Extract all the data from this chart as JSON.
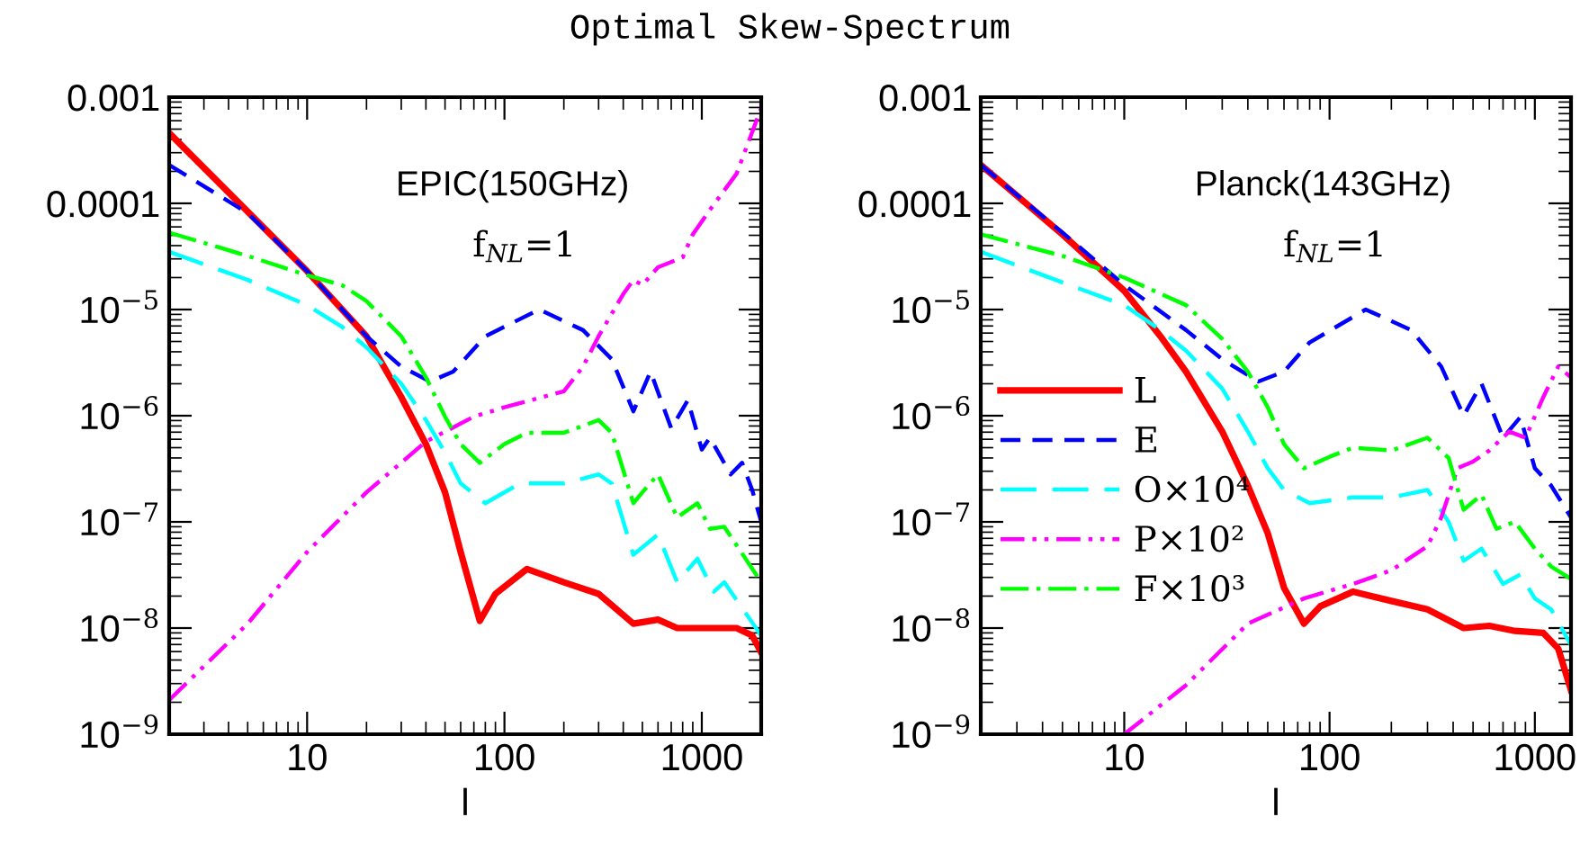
{
  "chart_data": [
    {
      "type": "line",
      "title": "Optimal Skew-Spectrum",
      "xlabel": "l",
      "log": "xy",
      "grid": false,
      "legend": false,
      "annotations": [
        "EPIC(150GHz)",
        "f$_{NL}$=1"
      ],
      "xlim": [
        2,
        2000
      ],
      "ylim": [
        1e-09,
        0.001
      ],
      "xticks": [
        10,
        100,
        1000
      ],
      "yticks": [
        {
          "value": 1e-09,
          "label": "10$^{−9}$"
        },
        {
          "value": 1e-08,
          "label": "10$^{−8}$"
        },
        {
          "value": 1e-07,
          "label": "10$^{−7}$"
        },
        {
          "value": 1e-06,
          "label": "10$^{−6}$"
        },
        {
          "value": 1e-05,
          "label": "10$^{−5}$"
        },
        {
          "value": 0.0001,
          "label": "0.0001"
        },
        {
          "value": 0.001,
          "label": "0.001"
        }
      ],
      "series": [
        {
          "color": "#ff0000",
          "line_style": "solid",
          "x": [
            2,
            10,
            20,
            30,
            40,
            50,
            60,
            75,
            90,
            130,
            200,
            300,
            450,
            600,
            750,
            1000,
            1500,
            1800,
            2000
          ],
          "values": [
            0.00046,
            2.3e-05,
            5.6e-06,
            1.5e-06,
            5.4e-07,
            1.9e-07,
            5.2e-08,
            1.17e-08,
            2.1e-08,
            3.6e-08,
            2.7e-08,
            2.1e-08,
            1.1e-08,
            1.2e-08,
            1e-08,
            1e-08,
            1e-08,
            8.5e-09,
            5.9e-09
          ]
        },
        {
          "color": "#0000ff",
          "line_style": "dashed",
          "x": [
            2,
            5,
            10,
            20,
            30,
            42,
            55,
            80,
            150,
            250,
            350,
            450,
            550,
            700,
            850,
            1000,
            1100,
            1400,
            1600,
            1800,
            2000
          ],
          "values": [
            0.00023,
            8.1e-05,
            2.3e-05,
            5.6e-06,
            2.9e-06,
            2.1e-06,
            2.6e-06,
            5.6e-06,
            1e-05,
            6.4e-06,
            3.4e-06,
            1.1e-06,
            2.6e-06,
            7.6e-07,
            1.4e-06,
            4.8e-07,
            6.2e-07,
            2.8e-07,
            3.6e-07,
            2e-07,
            1e-07
          ]
        },
        {
          "color": "#00ffff",
          "line_style": "longdash",
          "x": [
            2,
            5,
            10,
            15,
            20,
            30,
            40,
            50,
            60,
            80,
            120,
            200,
            300,
            350,
            450,
            600,
            750,
            950,
            1150,
            1300,
            2000
          ],
          "values": [
            3.5e-05,
            1.9e-05,
            1.1e-05,
            6.9e-06,
            4.4e-06,
            2e-06,
            9.1e-07,
            4.5e-07,
            2.3e-07,
            1.5e-07,
            2.3e-07,
            2.3e-07,
            2.8e-07,
            2.3e-07,
            4.9e-08,
            7.6e-08,
            2.7e-08,
            4.5e-08,
            2.2e-08,
            2.7e-08,
            8.5e-09
          ]
        },
        {
          "color": "#ff00ff",
          "line_style": "dashdotdot",
          "x": [
            2,
            5,
            10,
            20,
            40,
            70,
            100,
            200,
            250,
            300,
            400,
            450,
            500,
            600,
            800,
            900,
            1100,
            1500,
            2000
          ],
          "values": [
            2.1e-09,
            1.1e-08,
            5.2e-08,
            1.9e-07,
            5.7e-07,
            9.8e-07,
            1.2e-06,
            1.7e-06,
            2.9e-06,
            5.6e-06,
            1.4e-05,
            1.9e-05,
            1.7e-05,
            2.5e-05,
            3.1e-05,
            5.1e-05,
            8.7e-05,
            0.00019,
            0.00079
          ]
        },
        {
          "color": "#00ff00",
          "line_style": "dashdot",
          "x": [
            2,
            5,
            10,
            15,
            20,
            30,
            40,
            50,
            60,
            75,
            100,
            130,
            200,
            300,
            350,
            450,
            500,
            600,
            750,
            950,
            1100,
            1300,
            2000
          ],
          "values": [
            5.3e-05,
            3.2e-05,
            2.1e-05,
            1.7e-05,
            1.2e-05,
            5.6e-06,
            2.3e-06,
            9.8e-07,
            5.4e-07,
            3.6e-07,
            5.4e-07,
            6.9e-07,
            6.9e-07,
            9.1e-07,
            6.9e-07,
            1.5e-07,
            1.9e-07,
            2.8e-07,
            1.1e-07,
            1.5e-07,
            8.6e-08,
            9e-08,
            2.7e-08
          ]
        }
      ]
    },
    {
      "type": "line",
      "xlabel": "l",
      "log": "xy",
      "grid": false,
      "legend": "center left",
      "annotations": [
        "Planck(143GHz)",
        "f$_{NL}$=1"
      ],
      "xlim": [
        2,
        1500
      ],
      "ylim": [
        1e-09,
        0.001
      ],
      "xticks": [
        10,
        100,
        1000
      ],
      "yticks": [
        {
          "value": 1e-09,
          "label": "10$^{−9}$"
        },
        {
          "value": 1e-08,
          "label": "10$^{−8}$"
        },
        {
          "value": 1e-07,
          "label": "10$^{−7}$"
        },
        {
          "value": 1e-06,
          "label": "10$^{−6}$"
        },
        {
          "value": 1e-05,
          "label": "10$^{−5}$"
        },
        {
          "value": 0.0001,
          "label": "0.0001"
        },
        {
          "value": 0.001,
          "label": "0.001"
        }
      ],
      "series": [
        {
          "name": "L",
          "color": "#ff0000",
          "line_style": "solid",
          "x": [
            2,
            5,
            10,
            15,
            20,
            30,
            40,
            50,
            60,
            75,
            90,
            130,
            200,
            300,
            450,
            600,
            800,
            1100,
            1300,
            1500
          ],
          "values": [
            0.00023,
            5.1e-05,
            1.5e-05,
            5.6e-06,
            2.6e-06,
            7.1e-07,
            2.2e-07,
            7.8e-08,
            2.4e-08,
            1.1e-08,
            1.6e-08,
            2.2e-08,
            1.8e-08,
            1.5e-08,
            1e-08,
            1.05e-08,
            9.4e-09,
            9e-09,
            6.4e-09,
            2.6e-09
          ]
        },
        {
          "name": "E",
          "color": "#0000ff",
          "line_style": "dashed",
          "x": [
            2,
            5,
            10,
            20,
            30,
            45,
            60,
            80,
            150,
            250,
            350,
            450,
            550,
            700,
            850,
            1000,
            1200,
            1500
          ],
          "values": [
            0.00023,
            5.3e-05,
            1.7e-05,
            6.4e-06,
            3.4e-06,
            2.1e-06,
            2.6e-06,
            4.9e-06,
            1e-05,
            6.4e-06,
            2.9e-06,
            1e-06,
            2e-06,
            6.2e-07,
            9.7e-07,
            3.2e-07,
            2.2e-07,
            1.1e-07
          ]
        },
        {
          "name": "O×10⁴",
          "color": "#00ffff",
          "line_style": "longdash",
          "x": [
            2,
            5,
            10,
            15,
            20,
            30,
            40,
            50,
            60,
            80,
            130,
            200,
            300,
            380,
            450,
            550,
            700,
            850,
            1000,
            1200,
            1500
          ],
          "values": [
            3.5e-05,
            1.8e-05,
            1.1e-05,
            6.4e-06,
            4.1e-06,
            1.8e-06,
            7.1e-07,
            3.2e-07,
            2e-07,
            1.5e-07,
            1.7e-07,
            1.7e-07,
            2e-07,
            1e-07,
            4.3e-08,
            5.6e-08,
            2.6e-08,
            3.2e-08,
            1.9e-08,
            1.5e-08,
            6.9e-09
          ]
        },
        {
          "name": "P×10²",
          "color": "#ff00ff",
          "line_style": "dashdotdot",
          "x": [
            10,
            20,
            40,
            75,
            130,
            200,
            300,
            350,
            420,
            500,
            600,
            750,
            900,
            1100,
            1300,
            1500
          ],
          "values": [
            1e-09,
            2.9e-09,
            1.1e-08,
            1.9e-08,
            2.6e-08,
            3.5e-08,
            5.9e-08,
            1.1e-07,
            3.2e-07,
            3.7e-07,
            4.7e-07,
            7.1e-07,
            6.2e-07,
            1.5e-06,
            2.9e-06,
            2.3e-06
          ]
        },
        {
          "name": "F×10³",
          "color": "#00ff00",
          "line_style": "dashdot",
          "x": [
            2,
            5,
            10,
            20,
            30,
            40,
            50,
            60,
            75,
            100,
            130,
            200,
            300,
            380,
            450,
            550,
            650,
            800,
            1000,
            1200,
            1500
          ],
          "values": [
            5.1e-05,
            3.2e-05,
            2e-05,
            1.1e-05,
            5.3e-06,
            2.6e-06,
            1.2e-06,
            5.4e-07,
            3.2e-07,
            4.1e-07,
            5e-07,
            4.7e-07,
            6.2e-07,
            4e-07,
            1.3e-07,
            1.8e-07,
            8.6e-08,
            1e-07,
            5.6e-08,
            3.8e-08,
            2.9e-08
          ]
        }
      ]
    }
  ]
}
